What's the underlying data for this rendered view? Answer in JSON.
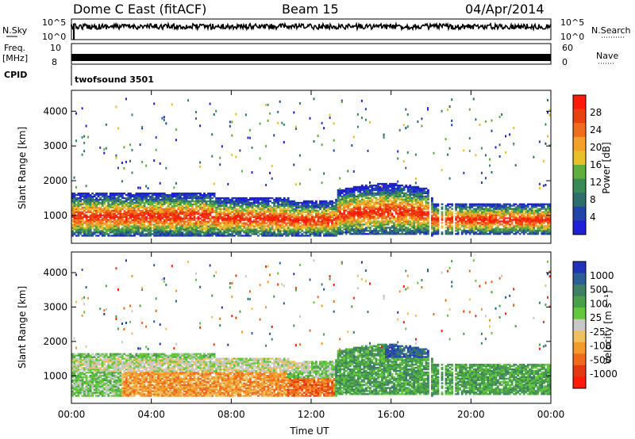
{
  "header": {
    "title": "Dome C East (fitACF)",
    "beam": "Beam 15",
    "date": "04/Apr/2014"
  },
  "top_panels": {
    "nsky_label": "N.Sky",
    "nsky_ticks": [
      "10^5",
      "10^0"
    ],
    "nsearch_label": "N.Search",
    "nsearch_ticks": [
      "10^5",
      "10^0"
    ],
    "freq_label_1": "Freq.",
    "freq_label_2": "[MHz]",
    "freq_ticks": [
      "10",
      "8"
    ],
    "nave_label": "Nave",
    "nave_ticks": [
      "60",
      "0"
    ],
    "cpid_label": "CPID",
    "cpid_value": "twofsound 3501"
  },
  "chart_data": [
    {
      "type": "heatmap",
      "name": "power",
      "ylabel": "Slant Range [km]",
      "ytick_labels": [
        "1000",
        "2000",
        "3000",
        "4000"
      ],
      "ylim": [
        200,
        4600
      ],
      "colorbar_label": "Power [dB]",
      "colorbar_ticks": [
        "4",
        "8",
        "12",
        "16",
        "20",
        "24",
        "28"
      ],
      "colorbar_colors": [
        "#1f1fd6",
        "#2244a8",
        "#2e6f6e",
        "#3a8a57",
        "#5fae3e",
        "#e8c02a",
        "#f2a12b",
        "#ef6d1e",
        "#e8420f",
        "#ff1a0a"
      ]
    },
    {
      "type": "heatmap",
      "name": "velocity",
      "ylabel": "Slant Range [km]",
      "ytick_labels": [
        "1000",
        "2000",
        "3000",
        "4000"
      ],
      "ylim": [
        200,
        4600
      ],
      "xlabel": "Time UT",
      "xtick_labels": [
        "00:00",
        "04:00",
        "08:00",
        "12:00",
        "16:00",
        "20:00",
        "00:00"
      ],
      "colorbar_label": "Velocity [m s⁻¹]",
      "colorbar_ticks": [
        "1000",
        "500",
        "100",
        "25",
        "-25",
        "-100",
        "-500",
        "-1000"
      ],
      "colorbar_colors": [
        "#2334b8",
        "#2c5f96",
        "#3f7f64",
        "#4aa04a",
        "#64c83c",
        "#c8c8c8",
        "#f0c060",
        "#f29a2c",
        "#ef6a1c",
        "#e43a12",
        "#ff1a0a"
      ]
    }
  ]
}
